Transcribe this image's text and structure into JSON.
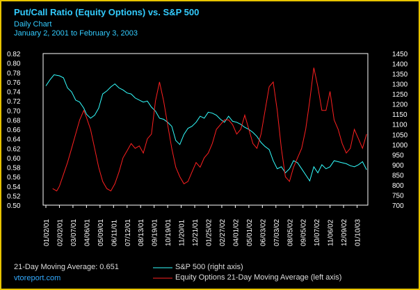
{
  "chart_data": {
    "type": "line",
    "title": "Put/Call Ratio (Equity Options) vs. S&P 500",
    "subtitle": "Daily Chart",
    "date_range": "January 2, 2001 to February 3, 2003",
    "left_axis": {
      "min": 0.5,
      "max": 0.82,
      "step": 0.02,
      "ticks": [
        "0.50",
        "0.52",
        "0.54",
        "0.56",
        "0.58",
        "0.60",
        "0.62",
        "0.64",
        "0.66",
        "0.68",
        "0.70",
        "0.72",
        "0.74",
        "0.76",
        "0.78",
        "0.80",
        "0.82"
      ]
    },
    "right_axis": {
      "min": 700,
      "max": 1450,
      "step": 50,
      "ticks": [
        "700",
        "750",
        "800",
        "850",
        "900",
        "950",
        "1000",
        "1050",
        "1100",
        "1150",
        "1200",
        "1250",
        "1300",
        "1350",
        "1400",
        "1450"
      ]
    },
    "x_ticks": [
      "01/02/01",
      "02/02/01",
      "03/07/01",
      "04/06/01",
      "05/09/01",
      "06/11/01",
      "07/12/01",
      "08/13/01",
      "09/19/01",
      "10/19/01",
      "11/20/01",
      "12/21/01",
      "01/25/02",
      "02/27/02",
      "04/01/02",
      "05/01/02",
      "06/03/02",
      "07/03/02",
      "08/05/02",
      "09/05/02",
      "10/07/02",
      "11/06/02",
      "12/09/02",
      "01/10/03"
    ],
    "series": [
      {
        "name": "S&P 500 (right axis)",
        "axis": "right",
        "color": "#33ffff",
        "x": [
          0,
          0.3,
          0.6,
          1,
          1.3,
          1.6,
          1.9,
          2.2,
          2.5,
          2.8,
          3,
          3.3,
          3.6,
          3.9,
          4.2,
          4.5,
          4.8,
          5.1,
          5.4,
          5.7,
          6,
          6.3,
          6.6,
          6.9,
          7.2,
          7.5,
          7.8,
          8.1,
          8.4,
          8.7,
          9,
          9.3,
          9.6,
          9.9,
          10.2,
          10.5,
          10.8,
          11.1,
          11.4,
          11.7,
          12,
          12.3,
          12.6,
          12.9,
          13.2,
          13.5,
          13.8,
          14.1,
          14.4,
          14.7,
          15,
          15.3,
          15.6,
          15.9,
          16.2,
          16.5,
          16.8,
          17.1,
          17.4,
          17.7,
          18,
          18.3,
          18.6,
          18.9,
          19.2,
          19.5,
          19.8,
          20.1,
          20.4,
          20.7,
          21,
          21.3,
          21.6,
          21.9,
          22.2,
          22.5,
          22.8,
          23.1,
          23.4,
          23.7
        ],
        "values": [
          1290,
          1320,
          1345,
          1340,
          1330,
          1280,
          1260,
          1220,
          1210,
          1180,
          1150,
          1130,
          1145,
          1180,
          1250,
          1265,
          1285,
          1300,
          1280,
          1270,
          1255,
          1250,
          1230,
          1220,
          1210,
          1215,
          1185,
          1165,
          1130,
          1125,
          1110,
          1090,
          1020,
          1000,
          1050,
          1080,
          1090,
          1110,
          1140,
          1130,
          1160,
          1155,
          1145,
          1125,
          1110,
          1140,
          1115,
          1110,
          1100,
          1085,
          1075,
          1060,
          1040,
          1010,
          990,
          975,
          920,
          880,
          890,
          860,
          880,
          920,
          910,
          880,
          850,
          820,
          890,
          860,
          900,
          880,
          890,
          920,
          915,
          910,
          905,
          895,
          890,
          900,
          915,
          875
        ]
      },
      {
        "name": "Equity Options 21-Day Moving Average (left axis)",
        "axis": "left",
        "color": "#ff2020",
        "x": [
          0.5,
          0.8,
          1,
          1.3,
          1.6,
          1.9,
          2.2,
          2.5,
          2.8,
          3,
          3.3,
          3.6,
          3.9,
          4.2,
          4.5,
          4.8,
          5.1,
          5.4,
          5.7,
          6,
          6.3,
          6.6,
          6.9,
          7.2,
          7.5,
          7.8,
          8.1,
          8.4,
          8.7,
          9,
          9.3,
          9.6,
          9.9,
          10.2,
          10.5,
          10.8,
          11.1,
          11.4,
          11.7,
          12,
          12.3,
          12.6,
          12.9,
          13.2,
          13.5,
          13.8,
          14.1,
          14.4,
          14.7,
          15,
          15.3,
          15.6,
          15.9,
          16.2,
          16.5,
          16.8,
          17.1,
          17.4,
          17.7,
          18,
          18.3,
          18.6,
          18.9,
          19.2,
          19.5,
          19.8,
          20.1,
          20.4,
          20.7,
          21,
          21.3,
          21.6,
          21.9,
          22.2,
          22.5,
          22.8,
          23.1,
          23.4,
          23.7
        ],
        "values": [
          0.535,
          0.53,
          0.54,
          0.565,
          0.59,
          0.62,
          0.65,
          0.68,
          0.7,
          0.685,
          0.66,
          0.62,
          0.58,
          0.55,
          0.535,
          0.53,
          0.545,
          0.57,
          0.6,
          0.615,
          0.63,
          0.62,
          0.625,
          0.61,
          0.64,
          0.65,
          0.72,
          0.76,
          0.72,
          0.67,
          0.62,
          0.58,
          0.56,
          0.545,
          0.55,
          0.57,
          0.59,
          0.58,
          0.6,
          0.61,
          0.63,
          0.66,
          0.67,
          0.68,
          0.68,
          0.67,
          0.65,
          0.66,
          0.69,
          0.66,
          0.63,
          0.62,
          0.65,
          0.7,
          0.75,
          0.76,
          0.7,
          0.62,
          0.56,
          0.55,
          0.58,
          0.6,
          0.62,
          0.66,
          0.72,
          0.79,
          0.75,
          0.7,
          0.7,
          0.74,
          0.68,
          0.66,
          0.63,
          0.61,
          0.62,
          0.66,
          0.64,
          0.62,
          0.65
        ]
      }
    ],
    "footer": {
      "moving_average_label": "21-Day Moving Average: 0.651",
      "site": "vtoreport.com"
    }
  }
}
